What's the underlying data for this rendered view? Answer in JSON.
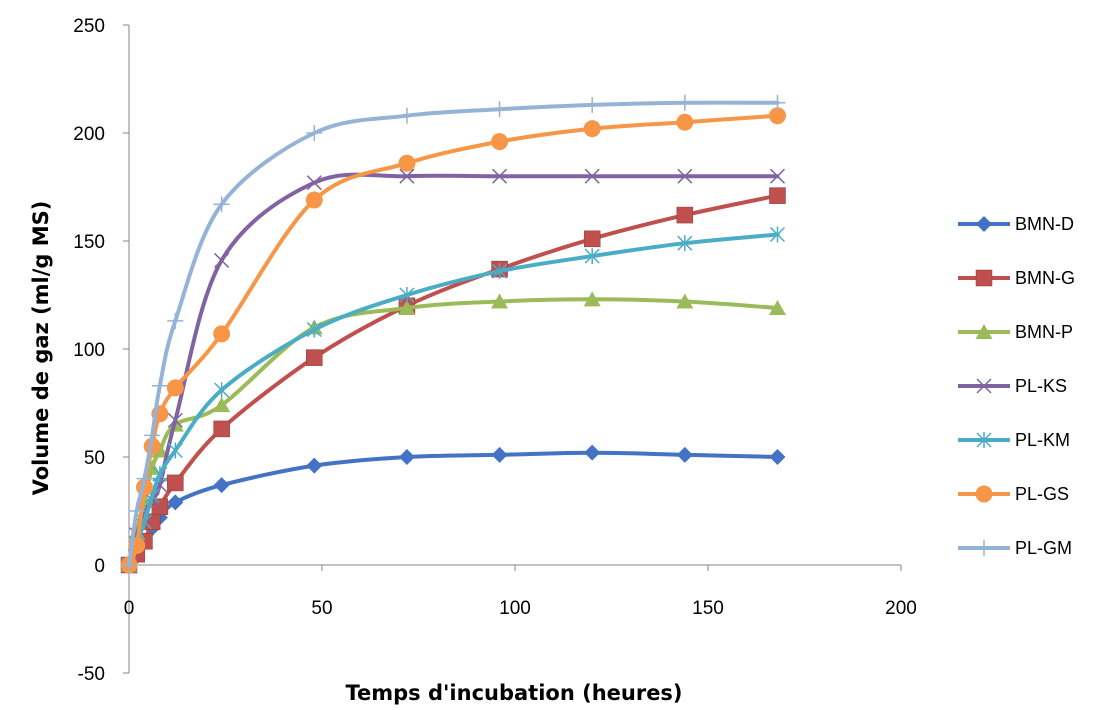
{
  "chart_data": {
    "type": "scatter",
    "title": "",
    "xlabel": "Temps d'incubation (heures)",
    "ylabel": "Volume de gaz (ml/g MS)",
    "xlim": [
      0,
      200
    ],
    "ylim": [
      -50,
      250
    ],
    "x_ticks": [
      0,
      50,
      100,
      150,
      200
    ],
    "y_ticks": [
      -50,
      0,
      50,
      100,
      150,
      200,
      250
    ],
    "grid": false,
    "legend_position": "right",
    "smooth_lines": true,
    "series": [
      {
        "name": "BMN-D",
        "color": "#4472c4",
        "marker": "diamond",
        "x": [
          0,
          2,
          4,
          6,
          8,
          12,
          24,
          48,
          72,
          96,
          120,
          144,
          168
        ],
        "y": [
          0,
          4,
          11,
          17,
          22,
          29,
          37,
          46,
          50,
          51,
          52,
          51,
          50
        ]
      },
      {
        "name": "BMN-G",
        "color": "#c0504d",
        "marker": "square",
        "x": [
          0,
          2,
          4,
          6,
          8,
          12,
          24,
          48,
          72,
          96,
          120,
          144,
          168
        ],
        "y": [
          0,
          5,
          11,
          20,
          27,
          38,
          63,
          96,
          120,
          137,
          151,
          162,
          171
        ]
      },
      {
        "name": "BMN-P",
        "color": "#9bbb59",
        "marker": "triangle",
        "x": [
          0,
          2,
          4,
          6,
          8,
          12,
          24,
          48,
          72,
          96,
          120,
          144,
          168
        ],
        "y": [
          0,
          15,
          30,
          45,
          53,
          65,
          74,
          110,
          119,
          122,
          123,
          122,
          119
        ]
      },
      {
        "name": "PL-KS",
        "color": "#8064a2",
        "marker": "x",
        "x": [
          0,
          2,
          4,
          6,
          8,
          12,
          24,
          48,
          72,
          96,
          120,
          144,
          168
        ],
        "y": [
          0,
          14,
          24,
          30,
          37,
          67,
          141,
          177,
          180,
          180,
          180,
          180,
          180
        ]
      },
      {
        "name": "PL-KM",
        "color": "#4bacc6",
        "marker": "star",
        "x": [
          0,
          2,
          4,
          6,
          8,
          12,
          24,
          48,
          72,
          96,
          120,
          144,
          168
        ],
        "y": [
          0,
          10,
          20,
          32,
          42,
          53,
          81,
          109,
          125,
          136,
          143,
          149,
          153
        ]
      },
      {
        "name": "PL-GS",
        "color": "#f79646",
        "marker": "circle",
        "x": [
          0,
          2,
          4,
          6,
          8,
          12,
          24,
          48,
          72,
          96,
          120,
          144,
          168
        ],
        "y": [
          0,
          9,
          36,
          55,
          70,
          82,
          107,
          169,
          186,
          196,
          202,
          205,
          208
        ]
      },
      {
        "name": "PL-GM",
        "color": "#95b3d7",
        "marker": "plus",
        "x": [
          0,
          2,
          4,
          6,
          8,
          12,
          24,
          48,
          72,
          96,
          120,
          144,
          168
        ],
        "y": [
          0,
          25,
          40,
          60,
          83,
          113,
          167,
          200,
          208,
          211,
          213,
          214,
          214
        ]
      }
    ]
  }
}
